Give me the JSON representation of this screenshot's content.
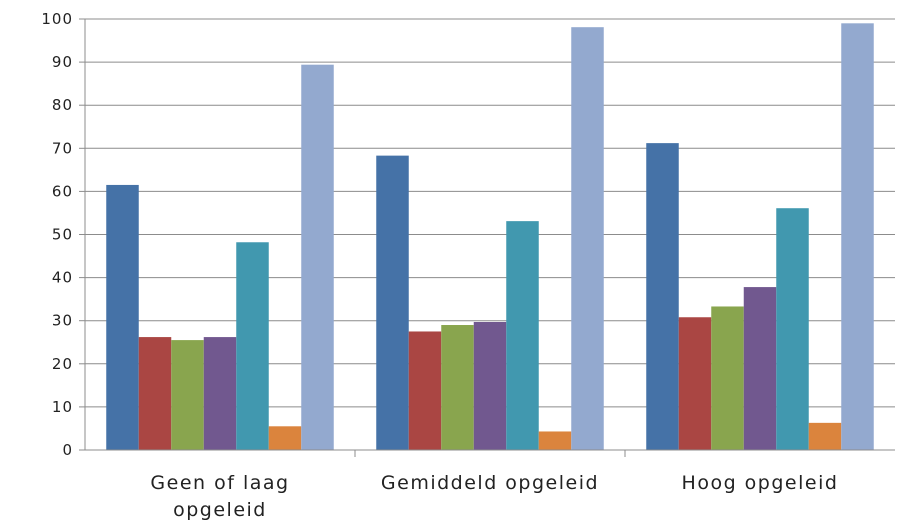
{
  "chart_data": {
    "type": "bar",
    "title": "",
    "xlabel": "",
    "ylabel": "",
    "ylim": [
      0,
      100
    ],
    "yticks": [
      "0",
      "10",
      "20",
      "30",
      "40",
      "50",
      "60",
      "70",
      "80",
      "90",
      "100"
    ],
    "grid": true,
    "legend": "none",
    "categories": [
      [
        "Geen of laag",
        "opgeleid"
      ],
      [
        "Gemiddeld opgeleid"
      ],
      [
        "Hoog opgeleid"
      ]
    ],
    "series": [
      {
        "color": "#4572a7",
        "values": [
          61.5,
          68.3,
          71.2
        ]
      },
      {
        "color": "#aa4643",
        "values": [
          26.2,
          27.5,
          30.8
        ]
      },
      {
        "color": "#89a54e",
        "values": [
          25.5,
          29.0,
          33.3
        ]
      },
      {
        "color": "#71588f",
        "values": [
          26.2,
          29.7,
          37.8
        ]
      },
      {
        "color": "#4198af",
        "values": [
          48.2,
          53.1,
          56.1
        ]
      },
      {
        "color": "#db843d",
        "values": [
          5.5,
          4.3,
          6.3
        ]
      },
      {
        "color": "#93a9cf",
        "values": [
          89.4,
          98.1,
          99.0
        ]
      }
    ]
  }
}
